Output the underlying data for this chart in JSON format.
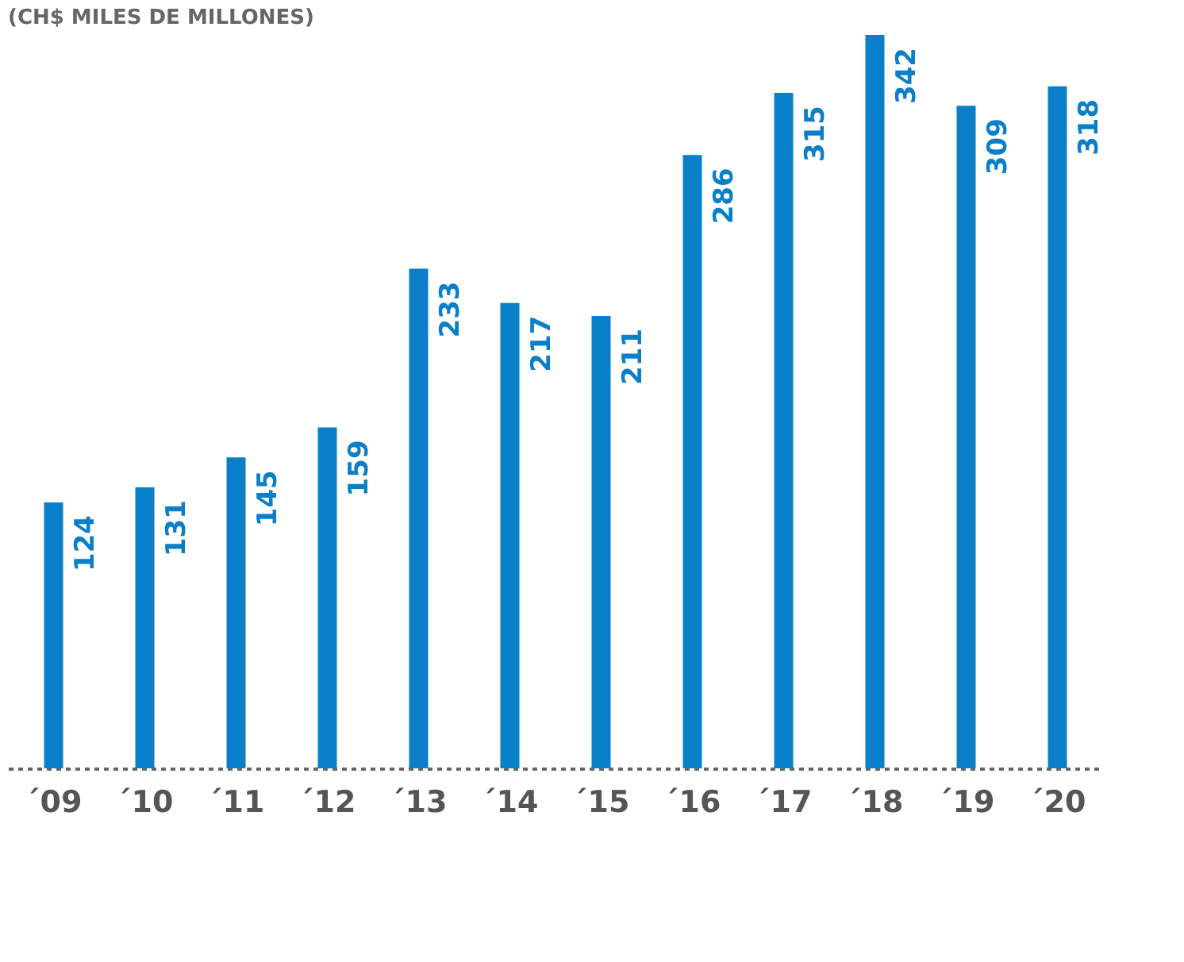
{
  "chart_data": {
    "type": "bar",
    "title": "(CH$ MILES DE MILLONES)",
    "categories": [
      "´09",
      "´10",
      "´11",
      "´12",
      "´13",
      "´14",
      "´15",
      "´16",
      "´17",
      "´18",
      "´19",
      "´20"
    ],
    "values": [
      124,
      131,
      145,
      159,
      233,
      217,
      211,
      286,
      315,
      342,
      309,
      318
    ],
    "color": "#0a7fc9",
    "data_labels": true
  }
}
